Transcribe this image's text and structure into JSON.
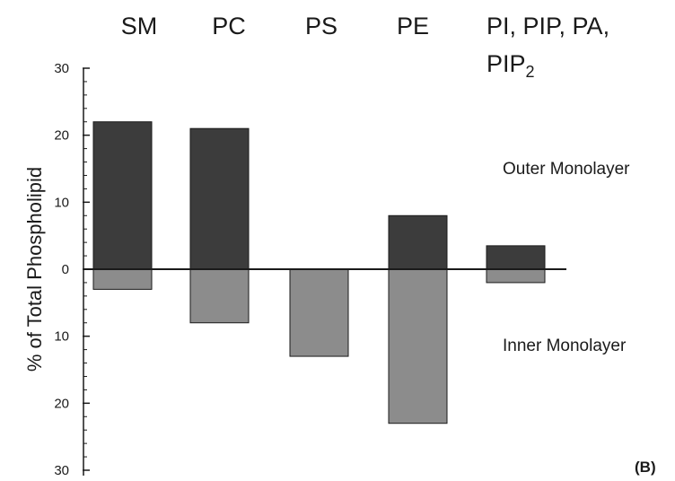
{
  "chart_data": {
    "type": "bar",
    "categories": [
      "SM",
      "PC",
      "PS",
      "PE",
      "PI, PIP, PA, PIP2"
    ],
    "category_labels": [
      {
        "line1": "SM"
      },
      {
        "line1": "PC"
      },
      {
        "line1": "PS"
      },
      {
        "line1": "PE"
      },
      {
        "line1": "PI, PIP, PA,",
        "line2_base": "PIP",
        "line2_sub": "2"
      }
    ],
    "series": [
      {
        "name": "Outer Monolayer",
        "values": [
          22,
          21,
          0,
          8,
          3.5
        ],
        "color": "#3c3c3c"
      },
      {
        "name": "Inner Monolayer",
        "values": [
          3,
          8,
          13,
          23,
          2
        ],
        "color": "#8c8c8c"
      }
    ],
    "title": "",
    "xlabel": "",
    "ylabel": "% of Total Phospholipid",
    "yticks": [
      "30",
      "20",
      "10",
      "0",
      "10",
      "20",
      "30"
    ],
    "ytick_values": [
      30,
      20,
      10,
      0,
      -10,
      -20,
      -30
    ],
    "ylim": [
      -30,
      30
    ],
    "grid": false,
    "panel_label": "(B)",
    "colors": {
      "outer": "#3c3c3c",
      "inner": "#8c8c8c",
      "axis": "#1a1a1a"
    }
  }
}
